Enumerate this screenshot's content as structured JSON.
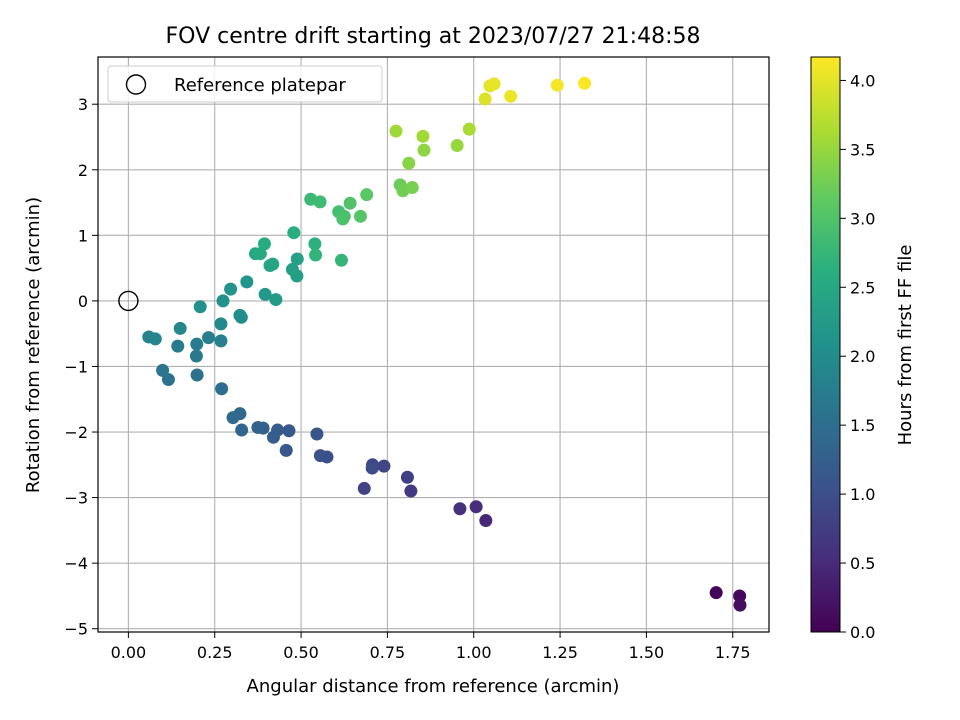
{
  "chart_data": {
    "type": "scatter",
    "title": "FOV centre drift starting at 2023/07/27 21:48:58",
    "xlabel": "Angular distance from reference (arcmin)",
    "ylabel": "Rotation from reference (arcmin)",
    "xlim": [
      -0.088,
      1.855
    ],
    "ylim": [
      -5.05,
      3.72
    ],
    "xticks": [
      0.0,
      0.25,
      0.5,
      0.75,
      1.0,
      1.25,
      1.5,
      1.75
    ],
    "xtick_labels": [
      "0.00",
      "0.25",
      "0.50",
      "0.75",
      "1.00",
      "1.25",
      "1.50",
      "1.75"
    ],
    "yticks": [
      -5,
      -4,
      -3,
      -2,
      -1,
      0,
      1,
      2,
      3
    ],
    "ytick_labels": [
      "−5",
      "−4",
      "−3",
      "−2",
      "−1",
      "0",
      "1",
      "2",
      "3"
    ],
    "grid": true,
    "legend": {
      "position": "upper-left",
      "entries": [
        {
          "label": "Reference platepar",
          "marker": "open-circle",
          "color": "#000000"
        }
      ]
    },
    "reference_point": {
      "x": 0.0,
      "y": 0.0
    },
    "colorbar": {
      "label": "Hours from first FF file",
      "colormap": "viridis",
      "range": [
        0.0,
        4.17
      ],
      "ticks": [
        0.0,
        0.5,
        1.0,
        1.5,
        2.0,
        2.5,
        3.0,
        3.5,
        4.0
      ],
      "tick_labels": [
        "0.0",
        "0.5",
        "1.0",
        "1.5",
        "2.0",
        "2.5",
        "3.0",
        "3.5",
        "4.0"
      ]
    },
    "series": [
      {
        "columns": [
          "x",
          "y",
          "hours"
        ],
        "points": [
          [
            1.702,
            -4.45,
            0.05
          ],
          [
            1.77,
            -4.5,
            0.1
          ],
          [
            1.771,
            -4.64,
            0.15
          ],
          [
            1.035,
            -3.35,
            0.45
          ],
          [
            1.007,
            -3.14,
            0.52
          ],
          [
            0.96,
            -3.17,
            0.58
          ],
          [
            0.818,
            -2.9,
            0.72
          ],
          [
            0.808,
            -2.69,
            0.77
          ],
          [
            0.683,
            -2.86,
            0.82
          ],
          [
            0.74,
            -2.52,
            0.86
          ],
          [
            0.707,
            -2.5,
            0.9
          ],
          [
            0.706,
            -2.55,
            0.94
          ],
          [
            0.575,
            -2.38,
            1.0
          ],
          [
            0.556,
            -2.36,
            1.05
          ],
          [
            0.546,
            -2.03,
            1.1
          ],
          [
            0.457,
            -2.28,
            1.12
          ],
          [
            0.465,
            -1.98,
            1.16
          ],
          [
            0.432,
            -1.97,
            1.2
          ],
          [
            0.42,
            -2.08,
            1.24
          ],
          [
            0.39,
            -1.94,
            1.28
          ],
          [
            0.375,
            -1.93,
            1.32
          ],
          [
            0.328,
            -1.97,
            1.36
          ],
          [
            0.323,
            -1.72,
            1.4
          ],
          [
            0.303,
            -1.78,
            1.44
          ],
          [
            0.27,
            -1.34,
            1.52
          ],
          [
            0.199,
            -1.13,
            1.55
          ],
          [
            0.116,
            -1.2,
            1.58
          ],
          [
            0.099,
            -1.06,
            1.62
          ],
          [
            0.197,
            -0.84,
            1.66
          ],
          [
            0.143,
            -0.69,
            1.7
          ],
          [
            0.198,
            -0.66,
            1.73
          ],
          [
            0.232,
            -0.56,
            1.76
          ],
          [
            0.268,
            -0.61,
            1.8
          ],
          [
            0.059,
            -0.55,
            1.84
          ],
          [
            0.078,
            -0.58,
            1.86
          ],
          [
            0.15,
            -0.42,
            1.9
          ],
          [
            0.268,
            -0.35,
            1.95
          ],
          [
            0.323,
            -0.22,
            2.0
          ],
          [
            0.327,
            -0.25,
            2.03
          ],
          [
            0.208,
            -0.09,
            2.06
          ],
          [
            0.274,
            0.0,
            2.1
          ],
          [
            0.296,
            0.18,
            2.14
          ],
          [
            0.343,
            0.29,
            2.18
          ],
          [
            0.396,
            0.1,
            2.22
          ],
          [
            0.427,
            0.02,
            2.26
          ],
          [
            0.488,
            0.38,
            2.3
          ],
          [
            0.475,
            0.48,
            2.34
          ],
          [
            0.489,
            0.64,
            2.38
          ],
          [
            0.41,
            0.54,
            2.42
          ],
          [
            0.418,
            0.56,
            2.45
          ],
          [
            0.368,
            0.72,
            2.48
          ],
          [
            0.382,
            0.72,
            2.52
          ],
          [
            0.394,
            0.87,
            2.56
          ],
          [
            0.479,
            1.04,
            2.6
          ],
          [
            0.54,
            0.87,
            2.65
          ],
          [
            0.542,
            0.7,
            2.7
          ],
          [
            0.617,
            0.62,
            2.75
          ],
          [
            0.528,
            1.55,
            2.8
          ],
          [
            0.555,
            1.51,
            2.85
          ],
          [
            0.609,
            1.36,
            2.9
          ],
          [
            0.625,
            1.29,
            2.93
          ],
          [
            0.621,
            1.25,
            2.96
          ],
          [
            0.642,
            1.49,
            3.0
          ],
          [
            0.672,
            1.29,
            3.04
          ],
          [
            0.69,
            1.62,
            3.08
          ],
          [
            0.787,
            1.77,
            3.2
          ],
          [
            0.795,
            1.68,
            3.25
          ],
          [
            0.822,
            1.73,
            3.3
          ],
          [
            0.812,
            2.1,
            3.4
          ],
          [
            0.856,
            2.3,
            3.45
          ],
          [
            0.952,
            2.37,
            3.5
          ],
          [
            0.775,
            2.59,
            3.55
          ],
          [
            0.853,
            2.51,
            3.58
          ],
          [
            0.987,
            2.62,
            3.62
          ],
          [
            1.033,
            3.08,
            3.95
          ],
          [
            1.047,
            3.28,
            4.0
          ],
          [
            1.059,
            3.31,
            4.03
          ],
          [
            1.107,
            3.12,
            4.06
          ],
          [
            1.242,
            3.29,
            4.1
          ],
          [
            1.321,
            3.32,
            4.15
          ]
        ]
      }
    ]
  }
}
